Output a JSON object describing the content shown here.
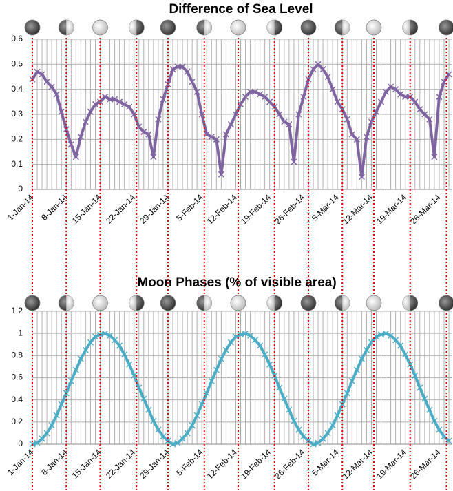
{
  "chart_data": [
    {
      "type": "line",
      "title": "Difference of Sea Level",
      "color": "#8064a2",
      "marker": "x",
      "grid": true,
      "categories": [
        "1-Jan-14",
        null,
        null,
        null,
        null,
        null,
        null,
        "8-Jan-14",
        null,
        null,
        null,
        null,
        null,
        null,
        "15-Jan-14",
        null,
        null,
        null,
        null,
        null,
        null,
        "22-Jan-14",
        null,
        null,
        null,
        null,
        null,
        null,
        "29-Jan-14",
        null,
        null,
        null,
        null,
        null,
        null,
        "5-Feb-14",
        null,
        null,
        null,
        null,
        null,
        null,
        "12-Feb-14",
        null,
        null,
        null,
        null,
        null,
        null,
        "19-Feb-14",
        null,
        null,
        null,
        null,
        null,
        null,
        "26-Feb-14",
        null,
        null,
        null,
        null,
        null,
        null,
        "5-Mar-14",
        null,
        null,
        null,
        null,
        null,
        null,
        "12-Mar-14",
        null,
        null,
        null,
        null,
        null,
        null,
        "19-Mar-14",
        null,
        null,
        null,
        null,
        null,
        null,
        "26-Mar-14",
        null,
        null
      ],
      "values": [
        0.44,
        0.47,
        0.46,
        0.43,
        0.41,
        0.38,
        0.31,
        0.24,
        0.18,
        0.13,
        0.21,
        0.27,
        0.31,
        0.34,
        0.35,
        0.37,
        0.36,
        0.36,
        0.35,
        0.34,
        0.33,
        0.3,
        0.25,
        0.23,
        0.22,
        0.13,
        0.28,
        0.36,
        0.42,
        0.48,
        0.49,
        0.49,
        0.47,
        0.43,
        0.39,
        0.3,
        0.22,
        0.21,
        0.2,
        0.06,
        0.22,
        0.26,
        0.3,
        0.34,
        0.37,
        0.39,
        0.39,
        0.38,
        0.37,
        0.35,
        0.33,
        0.3,
        0.27,
        0.26,
        0.11,
        0.3,
        0.37,
        0.44,
        0.48,
        0.5,
        0.48,
        0.45,
        0.4,
        0.35,
        0.32,
        0.28,
        0.22,
        0.2,
        0.05,
        0.21,
        0.27,
        0.31,
        0.35,
        0.39,
        0.41,
        0.4,
        0.38,
        0.37,
        0.37,
        0.35,
        0.32,
        0.3,
        0.28,
        0.13,
        0.37,
        0.43,
        0.46
      ],
      "ylim": [
        0,
        0.6
      ],
      "yticks": [
        0,
        0.1,
        0.2,
        0.3,
        0.4,
        0.5,
        0.6
      ],
      "phase_lines": [
        0,
        7,
        14,
        21.5,
        28,
        35.5,
        42.5,
        50,
        57,
        64,
        70.5,
        78,
        85.5
      ]
    },
    {
      "type": "line",
      "title": "Moon Phases (% of visible area)",
      "color": "#4bacc6",
      "marker": "x",
      "grid": true,
      "categories": [
        "1-Jan-14",
        null,
        null,
        null,
        null,
        null,
        null,
        "8-Jan-14",
        null,
        null,
        null,
        null,
        null,
        null,
        "15-Jan-14",
        null,
        null,
        null,
        null,
        null,
        null,
        "22-Jan-14",
        null,
        null,
        null,
        null,
        null,
        null,
        "29-Jan-14",
        null,
        null,
        null,
        null,
        null,
        null,
        "5-Feb-14",
        null,
        null,
        null,
        null,
        null,
        null,
        "12-Feb-14",
        null,
        null,
        null,
        null,
        null,
        null,
        "19-Feb-14",
        null,
        null,
        null,
        null,
        null,
        null,
        "26-Feb-14",
        null,
        null,
        null,
        null,
        null,
        null,
        "5-Mar-14",
        null,
        null,
        null,
        null,
        null,
        null,
        "12-Mar-14",
        null,
        null,
        null,
        null,
        null,
        null,
        "19-Mar-14",
        null,
        null,
        null,
        null,
        null,
        null,
        "26-Mar-14",
        null,
        null
      ],
      "values": [
        0,
        0.01,
        0.05,
        0.1,
        0.17,
        0.26,
        0.36,
        0.46,
        0.57,
        0.67,
        0.77,
        0.85,
        0.92,
        0.97,
        0.99,
        1,
        0.98,
        0.94,
        0.89,
        0.81,
        0.72,
        0.62,
        0.51,
        0.41,
        0.31,
        0.21,
        0.13,
        0.07,
        0.03,
        0,
        0.01,
        0.05,
        0.1,
        0.17,
        0.26,
        0.36,
        0.46,
        0.57,
        0.67,
        0.77,
        0.85,
        0.92,
        0.97,
        0.99,
        1,
        0.98,
        0.94,
        0.89,
        0.81,
        0.72,
        0.62,
        0.51,
        0.41,
        0.31,
        0.21,
        0.13,
        0.07,
        0.03,
        0,
        0.01,
        0.05,
        0.1,
        0.17,
        0.26,
        0.36,
        0.46,
        0.57,
        0.67,
        0.77,
        0.85,
        0.92,
        0.97,
        0.99,
        1,
        0.98,
        0.94,
        0.89,
        0.81,
        0.72,
        0.62,
        0.51,
        0.41,
        0.31,
        0.21,
        0.13,
        0.07,
        0.03
      ],
      "ylim": [
        0,
        1.2
      ],
      "yticks": [
        0,
        0.2,
        0.4,
        0.6,
        0.8,
        1,
        1.2
      ]
    }
  ]
}
